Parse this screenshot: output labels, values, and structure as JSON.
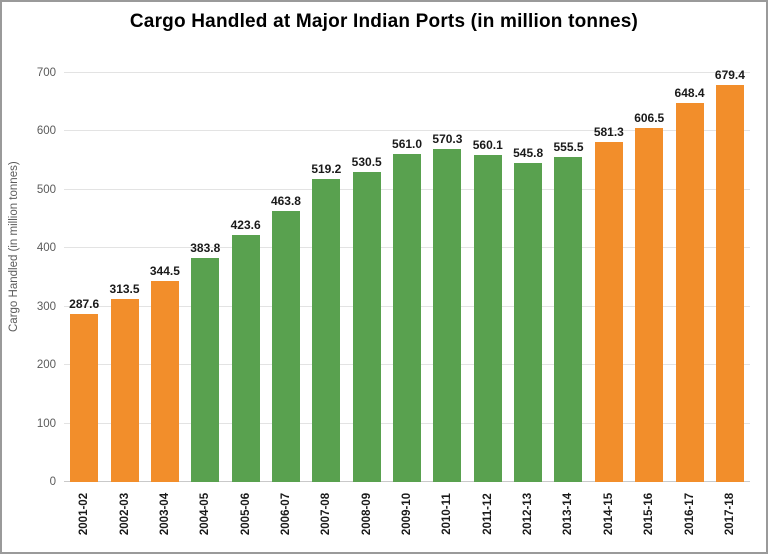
{
  "title": "Cargo Handled at Major Indian Ports (in million tonnes)",
  "chart_data": {
    "type": "bar",
    "title": "Cargo Handled at Major Indian Ports (in million tonnes)",
    "xlabel": "",
    "ylabel": "Cargo Handled (in million tonnes)",
    "ylim": [
      0,
      736
    ],
    "yticks": [
      0,
      100,
      200,
      300,
      400,
      500,
      600,
      700
    ],
    "grid": true,
    "legend": "none",
    "categories": [
      "2001-02",
      "2002-03",
      "2003-04",
      "2004-05",
      "2005-06",
      "2006-07",
      "2007-08",
      "2008-09",
      "2009-10",
      "2010-11",
      "2011-12",
      "2012-13",
      "2013-14",
      "2014-15",
      "2015-16",
      "2016-17",
      "2017-18"
    ],
    "values": [
      287.6,
      313.5,
      344.5,
      383.8,
      423.6,
      463.8,
      519.2,
      530.5,
      561.0,
      570.3,
      560.1,
      545.8,
      555.5,
      581.3,
      606.5,
      648.4,
      679.4
    ],
    "value_labels": [
      "287.6",
      "313.5",
      "344.5",
      "383.8",
      "423.6",
      "463.8",
      "519.2",
      "530.5",
      "561.0",
      "570.3",
      "560.1",
      "545.8",
      "555.5",
      "581.3",
      "606.5",
      "648.4",
      "679.4"
    ],
    "bar_colors": [
      "#F28E2B",
      "#F28E2B",
      "#F28E2B",
      "#59A14F",
      "#59A14F",
      "#59A14F",
      "#59A14F",
      "#59A14F",
      "#59A14F",
      "#59A14F",
      "#59A14F",
      "#59A14F",
      "#59A14F",
      "#F28E2B",
      "#F28E2B",
      "#F28E2B",
      "#F28E2B"
    ],
    "palette": {
      "orange": "#F28E2B",
      "green": "#59A14F"
    }
  }
}
